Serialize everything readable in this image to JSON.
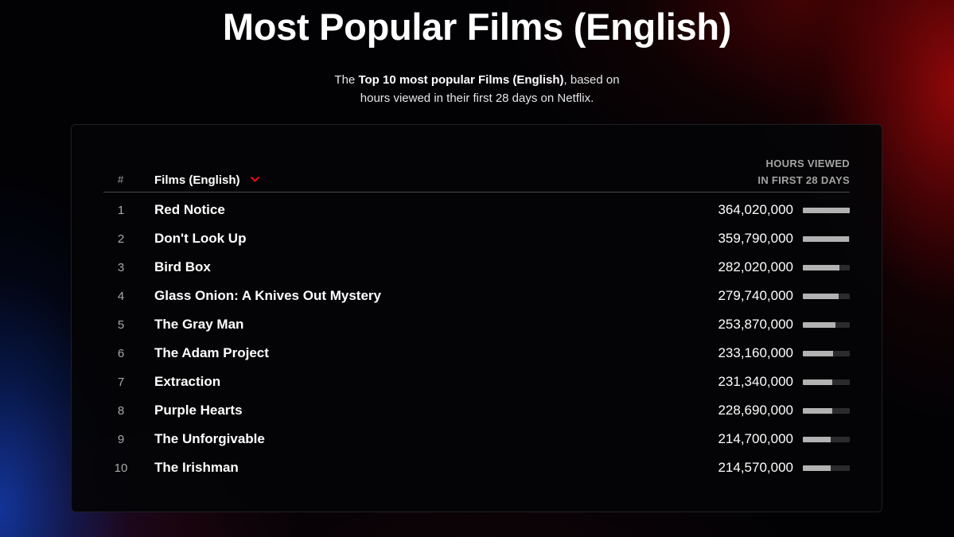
{
  "page": {
    "title": "Most Popular Films (English)",
    "subtitle_prefix": "The ",
    "subtitle_bold": "Top 10 most popular Films (English)",
    "subtitle_suffix": ", based on",
    "subtitle_line2": "hours viewed in their first 28 days on Netflix."
  },
  "table": {
    "rank_header": "#",
    "category_header": "Films (English)",
    "category_chevron_icon": "chevron-down-icon",
    "hours_header_line1": "HOURS VIEWED",
    "hours_header_line2": "IN FIRST 28 DAYS",
    "bar_max_hours": 364020000,
    "colors": {
      "accent": "#e50914",
      "bar_fill": "#b2b2b2",
      "bar_track": "#2b2b2e"
    },
    "rows": [
      {
        "rank": "1",
        "title": "Red Notice",
        "hours": "364,020,000",
        "hours_value": 364020000
      },
      {
        "rank": "2",
        "title": "Don't Look Up",
        "hours": "359,790,000",
        "hours_value": 359790000
      },
      {
        "rank": "3",
        "title": "Bird Box",
        "hours": "282,020,000",
        "hours_value": 282020000
      },
      {
        "rank": "4",
        "title": "Glass Onion: A Knives Out Mystery",
        "hours": "279,740,000",
        "hours_value": 279740000
      },
      {
        "rank": "5",
        "title": "The Gray Man",
        "hours": "253,870,000",
        "hours_value": 253870000
      },
      {
        "rank": "6",
        "title": "The Adam Project",
        "hours": "233,160,000",
        "hours_value": 233160000
      },
      {
        "rank": "7",
        "title": "Extraction",
        "hours": "231,340,000",
        "hours_value": 231340000
      },
      {
        "rank": "8",
        "title": "Purple Hearts",
        "hours": "228,690,000",
        "hours_value": 228690000
      },
      {
        "rank": "9",
        "title": "The Unforgivable",
        "hours": "214,700,000",
        "hours_value": 214700000
      },
      {
        "rank": "10",
        "title": "The Irishman",
        "hours": "214,570,000",
        "hours_value": 214570000
      }
    ]
  }
}
